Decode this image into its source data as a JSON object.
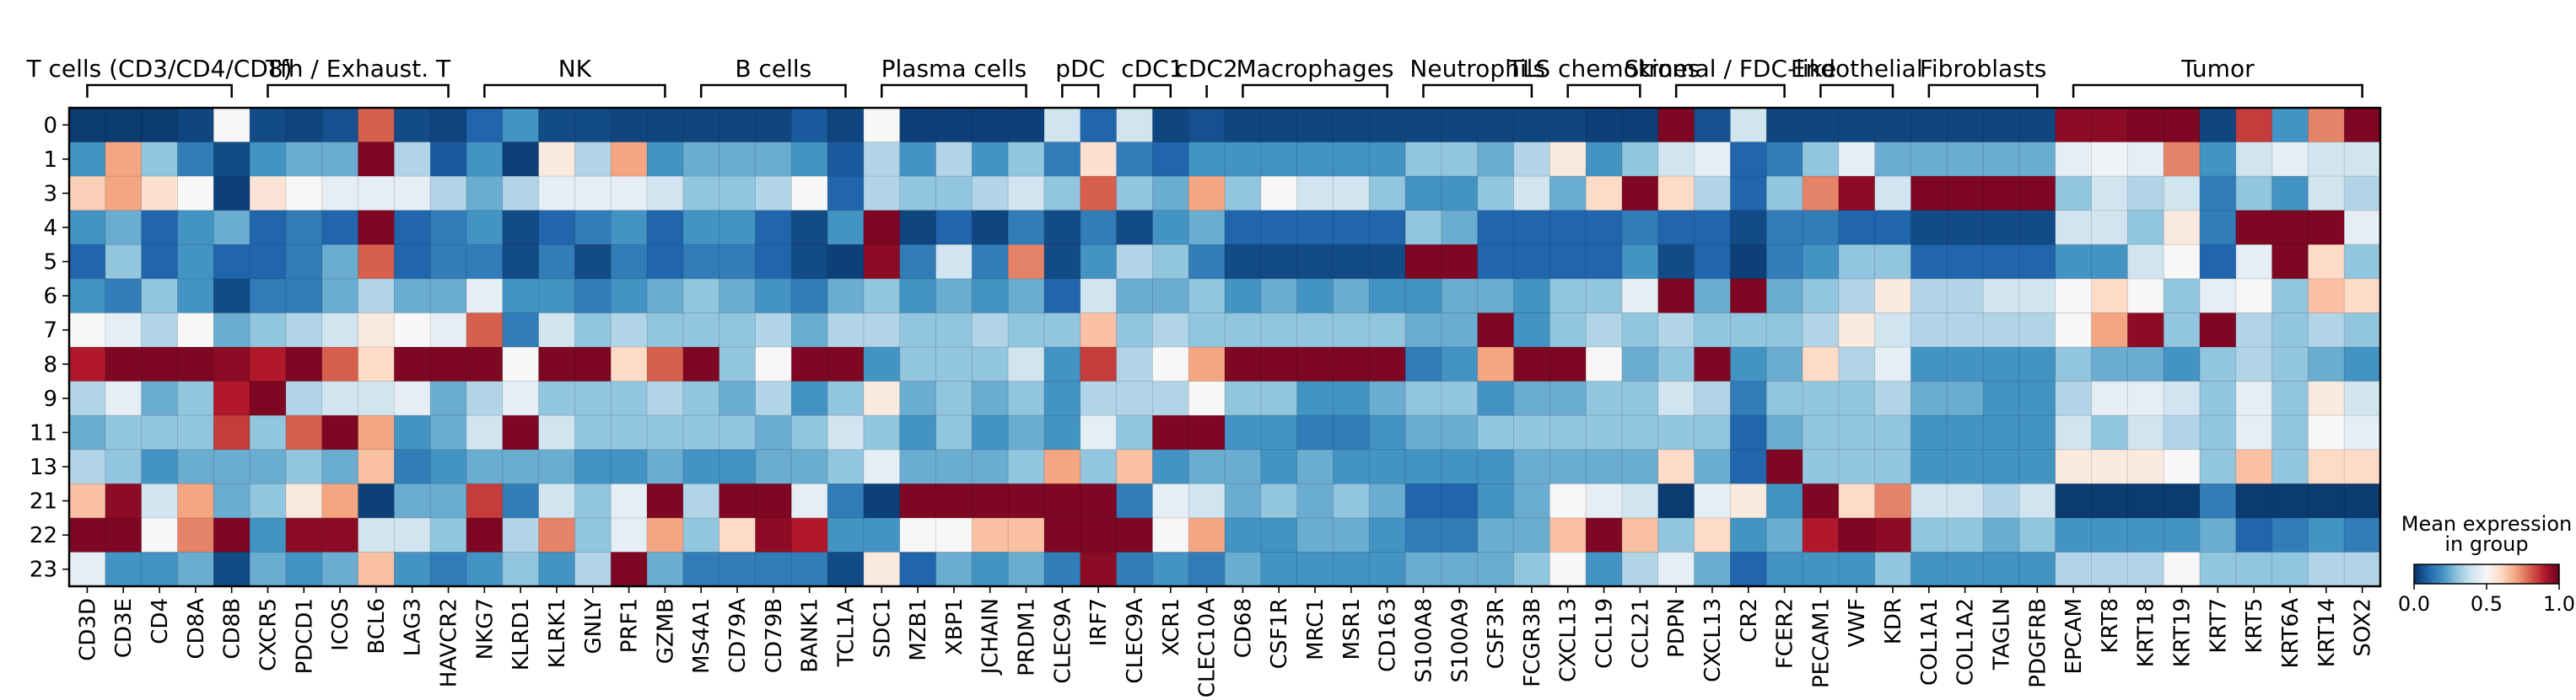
{
  "chart_data": {
    "type": "heatmap",
    "title": "",
    "xlabel": "",
    "ylabel": "",
    "rows": [
      "0",
      "1",
      "3",
      "4",
      "5",
      "6",
      "7",
      "8",
      "9",
      "11",
      "13",
      "21",
      "22",
      "23"
    ],
    "columns": [
      "CD3D",
      "CD3E",
      "CD4",
      "CD8A",
      "CD8B",
      "CXCR5",
      "PDCD1",
      "ICOS",
      "BCL6",
      "LAG3",
      "HAVCR2",
      "NKG7",
      "KLRD1",
      "KLRK1",
      "GNLY",
      "PRF1",
      "GZMB",
      "MS4A1",
      "CD79A",
      "CD79B",
      "BANK1",
      "TCL1A",
      "SDC1",
      "MZB1",
      "XBP1",
      "JCHAIN",
      "PRDM1",
      "CLEC9A",
      "IRF7",
      "CLEC9A",
      "XCR1",
      "CLEC10A",
      "CD68",
      "CSF1R",
      "MRC1",
      "MSR1",
      "CD163",
      "S100A8",
      "S100A9",
      "CSF3R",
      "FCGR3B",
      "CXCL13",
      "CCL19",
      "CCL21",
      "PDPN",
      "CXCL13",
      "CR2",
      "FCER2",
      "PECAM1",
      "VWF",
      "KDR",
      "COL1A1",
      "COL1A2",
      "TAGLN",
      "PDGFRB",
      "EPCAM",
      "KRT8",
      "KRT18",
      "KRT19",
      "KRT7",
      "KRT5",
      "KRT6A",
      "KRT14",
      "SOX2"
    ],
    "groups": [
      {
        "label": "T cells (CD3/CD4/CD8)",
        "start": 0,
        "end": 4
      },
      {
        "label": "Tfh / Exhaust. T",
        "start": 5,
        "end": 10
      },
      {
        "label": "NK",
        "start": 11,
        "end": 16
      },
      {
        "label": "B cells",
        "start": 17,
        "end": 21
      },
      {
        "label": "Plasma cells",
        "start": 22,
        "end": 26
      },
      {
        "label": "pDC",
        "start": 27,
        "end": 28
      },
      {
        "label": "cDC1",
        "start": 29,
        "end": 30
      },
      {
        "label": "cDC2",
        "start": 31,
        "end": 31
      },
      {
        "label": "Macrophages",
        "start": 32,
        "end": 36
      },
      {
        "label": "Neutrophils",
        "start": 37,
        "end": 40
      },
      {
        "label": "TLS chemokines",
        "start": 41,
        "end": 43
      },
      {
        "label": "Stromal / FDC-like",
        "start": 44,
        "end": 47
      },
      {
        "label": "Endothelial",
        "start": 48,
        "end": 50
      },
      {
        "label": "Fibroblasts",
        "start": 51,
        "end": 54
      },
      {
        "label": "Tumor",
        "start": 55,
        "end": 63
      }
    ],
    "values": [
      [
        0.02,
        0.02,
        0.02,
        0.04,
        0.5,
        0.05,
        0.04,
        0.06,
        0.8,
        0.05,
        0.04,
        0.1,
        0.2,
        0.05,
        0.05,
        0.04,
        0.04,
        0.04,
        0.04,
        0.04,
        0.08,
        0.04,
        0.5,
        0.03,
        0.03,
        0.03,
        0.03,
        0.4,
        0.1,
        0.4,
        0.04,
        0.06,
        0.04,
        0.04,
        0.04,
        0.04,
        0.04,
        0.04,
        0.04,
        0.04,
        0.04,
        0.04,
        0.03,
        0.03,
        0.97,
        0.06,
        0.4,
        0.04,
        0.04,
        0.04,
        0.04,
        0.04,
        0.04,
        0.04,
        0.04,
        0.95,
        0.95,
        0.97,
        0.97,
        0.04,
        0.85,
        0.2,
        0.75,
        0.97
      ],
      [
        0.2,
        0.7,
        0.3,
        0.15,
        0.05,
        0.2,
        0.25,
        0.25,
        0.97,
        0.35,
        0.08,
        0.2,
        0.03,
        0.55,
        0.35,
        0.7,
        0.2,
        0.25,
        0.25,
        0.25,
        0.2,
        0.08,
        0.35,
        0.2,
        0.35,
        0.2,
        0.3,
        0.15,
        0.58,
        0.15,
        0.1,
        0.2,
        0.2,
        0.2,
        0.2,
        0.2,
        0.2,
        0.3,
        0.3,
        0.25,
        0.35,
        0.55,
        0.2,
        0.3,
        0.4,
        0.45,
        0.1,
        0.15,
        0.3,
        0.45,
        0.25,
        0.25,
        0.25,
        0.25,
        0.25,
        0.45,
        0.48,
        0.45,
        0.75,
        0.2,
        0.4,
        0.45,
        0.4,
        0.4
      ],
      [
        0.62,
        0.7,
        0.58,
        0.5,
        0.03,
        0.57,
        0.5,
        0.45,
        0.45,
        0.45,
        0.35,
        0.25,
        0.35,
        0.45,
        0.45,
        0.45,
        0.4,
        0.3,
        0.3,
        0.35,
        0.5,
        0.1,
        0.35,
        0.3,
        0.3,
        0.35,
        0.4,
        0.3,
        0.8,
        0.3,
        0.25,
        0.7,
        0.3,
        0.5,
        0.4,
        0.4,
        0.3,
        0.2,
        0.2,
        0.3,
        0.4,
        0.25,
        0.6,
        0.97,
        0.6,
        0.35,
        0.1,
        0.3,
        0.75,
        0.95,
        0.4,
        0.97,
        0.97,
        0.97,
        0.97,
        0.3,
        0.4,
        0.35,
        0.4,
        0.15,
        0.3,
        0.2,
        0.4,
        0.35
      ],
      [
        0.2,
        0.25,
        0.1,
        0.2,
        0.25,
        0.1,
        0.15,
        0.1,
        0.97,
        0.1,
        0.15,
        0.2,
        0.05,
        0.1,
        0.15,
        0.2,
        0.1,
        0.2,
        0.2,
        0.1,
        0.05,
        0.2,
        0.97,
        0.04,
        0.1,
        0.04,
        0.15,
        0.05,
        0.15,
        0.05,
        0.2,
        0.25,
        0.1,
        0.1,
        0.1,
        0.1,
        0.1,
        0.3,
        0.25,
        0.1,
        0.1,
        0.1,
        0.1,
        0.15,
        0.1,
        0.1,
        0.05,
        0.15,
        0.15,
        0.1,
        0.1,
        0.05,
        0.05,
        0.05,
        0.05,
        0.4,
        0.4,
        0.3,
        0.55,
        0.15,
        0.97,
        0.97,
        0.97,
        0.45
      ],
      [
        0.1,
        0.3,
        0.1,
        0.2,
        0.1,
        0.1,
        0.15,
        0.25,
        0.8,
        0.1,
        0.15,
        0.15,
        0.05,
        0.15,
        0.05,
        0.15,
        0.1,
        0.15,
        0.15,
        0.1,
        0.05,
        0.03,
        0.95,
        0.15,
        0.4,
        0.15,
        0.75,
        0.05,
        0.2,
        0.35,
        0.3,
        0.15,
        0.05,
        0.05,
        0.05,
        0.05,
        0.05,
        0.97,
        0.97,
        0.1,
        0.1,
        0.1,
        0.1,
        0.2,
        0.05,
        0.1,
        0.03,
        0.15,
        0.2,
        0.3,
        0.3,
        0.1,
        0.1,
        0.1,
        0.1,
        0.2,
        0.2,
        0.4,
        0.5,
        0.1,
        0.45,
        0.97,
        0.6,
        0.3
      ],
      [
        0.2,
        0.15,
        0.3,
        0.2,
        0.05,
        0.15,
        0.15,
        0.25,
        0.35,
        0.25,
        0.25,
        0.45,
        0.2,
        0.2,
        0.15,
        0.2,
        0.25,
        0.3,
        0.25,
        0.2,
        0.15,
        0.25,
        0.3,
        0.2,
        0.25,
        0.2,
        0.25,
        0.1,
        0.4,
        0.25,
        0.25,
        0.3,
        0.2,
        0.25,
        0.2,
        0.25,
        0.2,
        0.2,
        0.25,
        0.25,
        0.2,
        0.3,
        0.3,
        0.45,
        0.97,
        0.25,
        0.97,
        0.25,
        0.3,
        0.35,
        0.55,
        0.35,
        0.35,
        0.4,
        0.4,
        0.5,
        0.6,
        0.5,
        0.3,
        0.45,
        0.5,
        0.3,
        0.65,
        0.6
      ],
      [
        0.5,
        0.45,
        0.35,
        0.5,
        0.25,
        0.3,
        0.35,
        0.4,
        0.55,
        0.5,
        0.45,
        0.8,
        0.15,
        0.4,
        0.3,
        0.35,
        0.3,
        0.3,
        0.3,
        0.35,
        0.25,
        0.35,
        0.35,
        0.3,
        0.3,
        0.35,
        0.3,
        0.3,
        0.65,
        0.3,
        0.35,
        0.3,
        0.3,
        0.3,
        0.3,
        0.3,
        0.3,
        0.25,
        0.25,
        0.97,
        0.2,
        0.3,
        0.35,
        0.3,
        0.35,
        0.3,
        0.3,
        0.3,
        0.35,
        0.55,
        0.4,
        0.35,
        0.35,
        0.35,
        0.35,
        0.5,
        0.7,
        0.95,
        0.3,
        0.97,
        0.35,
        0.3,
        0.35,
        0.3
      ],
      [
        0.9,
        0.97,
        0.97,
        0.97,
        0.95,
        0.9,
        0.97,
        0.8,
        0.6,
        0.97,
        0.97,
        0.97,
        0.5,
        0.97,
        0.97,
        0.6,
        0.8,
        0.97,
        0.3,
        0.5,
        0.97,
        0.97,
        0.2,
        0.3,
        0.3,
        0.3,
        0.4,
        0.2,
        0.85,
        0.35,
        0.5,
        0.7,
        0.97,
        0.97,
        0.97,
        0.97,
        0.97,
        0.15,
        0.2,
        0.7,
        0.97,
        0.97,
        0.5,
        0.25,
        0.3,
        0.97,
        0.2,
        0.25,
        0.6,
        0.35,
        0.45,
        0.2,
        0.2,
        0.2,
        0.2,
        0.3,
        0.25,
        0.25,
        0.2,
        0.3,
        0.35,
        0.3,
        0.25,
        0.2
      ],
      [
        0.35,
        0.45,
        0.25,
        0.3,
        0.9,
        0.97,
        0.35,
        0.4,
        0.4,
        0.45,
        0.25,
        0.35,
        0.45,
        0.3,
        0.3,
        0.3,
        0.35,
        0.3,
        0.25,
        0.35,
        0.2,
        0.3,
        0.55,
        0.25,
        0.3,
        0.25,
        0.3,
        0.2,
        0.35,
        0.35,
        0.35,
        0.5,
        0.3,
        0.3,
        0.2,
        0.2,
        0.25,
        0.3,
        0.3,
        0.2,
        0.25,
        0.25,
        0.3,
        0.3,
        0.4,
        0.35,
        0.15,
        0.3,
        0.3,
        0.3,
        0.35,
        0.25,
        0.25,
        0.2,
        0.2,
        0.35,
        0.45,
        0.45,
        0.4,
        0.3,
        0.45,
        0.3,
        0.55,
        0.4
      ],
      [
        0.25,
        0.3,
        0.3,
        0.3,
        0.85,
        0.3,
        0.8,
        0.97,
        0.7,
        0.2,
        0.25,
        0.4,
        0.97,
        0.4,
        0.3,
        0.3,
        0.3,
        0.3,
        0.3,
        0.25,
        0.3,
        0.4,
        0.3,
        0.2,
        0.3,
        0.2,
        0.25,
        0.2,
        0.45,
        0.3,
        0.97,
        0.97,
        0.2,
        0.2,
        0.15,
        0.15,
        0.2,
        0.25,
        0.25,
        0.3,
        0.3,
        0.3,
        0.3,
        0.3,
        0.3,
        0.3,
        0.1,
        0.25,
        0.3,
        0.3,
        0.3,
        0.2,
        0.2,
        0.2,
        0.2,
        0.4,
        0.3,
        0.4,
        0.35,
        0.3,
        0.45,
        0.3,
        0.5,
        0.45
      ],
      [
        0.35,
        0.3,
        0.2,
        0.25,
        0.25,
        0.25,
        0.3,
        0.25,
        0.65,
        0.15,
        0.2,
        0.25,
        0.25,
        0.25,
        0.2,
        0.2,
        0.25,
        0.2,
        0.2,
        0.25,
        0.25,
        0.3,
        0.45,
        0.25,
        0.25,
        0.25,
        0.3,
        0.7,
        0.3,
        0.65,
        0.2,
        0.25,
        0.25,
        0.2,
        0.25,
        0.2,
        0.2,
        0.2,
        0.2,
        0.2,
        0.25,
        0.25,
        0.25,
        0.25,
        0.6,
        0.25,
        0.1,
        0.97,
        0.3,
        0.3,
        0.3,
        0.2,
        0.2,
        0.2,
        0.2,
        0.55,
        0.55,
        0.55,
        0.5,
        0.3,
        0.65,
        0.3,
        0.6,
        0.6
      ],
      [
        0.65,
        0.95,
        0.4,
        0.7,
        0.25,
        0.3,
        0.55,
        0.7,
        0.03,
        0.25,
        0.25,
        0.85,
        0.15,
        0.4,
        0.3,
        0.45,
        0.97,
        0.35,
        0.97,
        0.97,
        0.45,
        0.15,
        0.03,
        0.97,
        0.97,
        0.97,
        0.97,
        0.97,
        0.97,
        0.15,
        0.45,
        0.4,
        0.25,
        0.3,
        0.25,
        0.3,
        0.25,
        0.1,
        0.1,
        0.2,
        0.25,
        0.5,
        0.45,
        0.4,
        0.02,
        0.45,
        0.55,
        0.2,
        0.97,
        0.6,
        0.75,
        0.4,
        0.4,
        0.35,
        0.4,
        0.02,
        0.02,
        0.02,
        0.02,
        0.15,
        0.02,
        0.02,
        0.02,
        0.02
      ],
      [
        0.97,
        0.97,
        0.5,
        0.75,
        0.97,
        0.2,
        0.95,
        0.95,
        0.4,
        0.4,
        0.3,
        0.97,
        0.35,
        0.75,
        0.3,
        0.45,
        0.7,
        0.3,
        0.6,
        0.95,
        0.9,
        0.2,
        0.2,
        0.5,
        0.5,
        0.65,
        0.65,
        0.97,
        0.97,
        0.97,
        0.5,
        0.7,
        0.2,
        0.2,
        0.25,
        0.25,
        0.2,
        0.15,
        0.15,
        0.25,
        0.25,
        0.65,
        0.97,
        0.65,
        0.3,
        0.6,
        0.2,
        0.25,
        0.9,
        0.97,
        0.95,
        0.3,
        0.3,
        0.25,
        0.3,
        0.2,
        0.2,
        0.2,
        0.2,
        0.25,
        0.1,
        0.15,
        0.2,
        0.15
      ],
      [
        0.45,
        0.2,
        0.2,
        0.25,
        0.05,
        0.25,
        0.2,
        0.25,
        0.65,
        0.2,
        0.15,
        0.2,
        0.3,
        0.2,
        0.35,
        0.97,
        0.25,
        0.15,
        0.15,
        0.15,
        0.15,
        0.05,
        0.55,
        0.1,
        0.25,
        0.2,
        0.25,
        0.15,
        0.95,
        0.15,
        0.2,
        0.15,
        0.25,
        0.2,
        0.2,
        0.2,
        0.2,
        0.25,
        0.25,
        0.25,
        0.3,
        0.5,
        0.2,
        0.35,
        0.45,
        0.25,
        0.1,
        0.2,
        0.2,
        0.2,
        0.3,
        0.2,
        0.2,
        0.2,
        0.2,
        0.35,
        0.35,
        0.35,
        0.5,
        0.3,
        0.3,
        0.3,
        0.35,
        0.35
      ]
    ],
    "colorbar": {
      "label": "Mean expression\nin group",
      "label_lines": [
        "Mean expression",
        "in group"
      ],
      "min": 0.0,
      "max": 1.0,
      "ticks": [
        "0.0",
        "0.5",
        "1.0"
      ],
      "colormap": "RdBu_r"
    }
  }
}
